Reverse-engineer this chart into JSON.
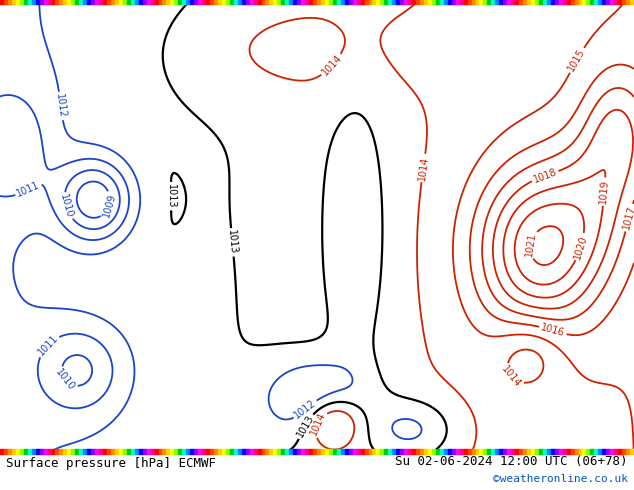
{
  "title_left": "Surface pressure [hPa] ECMWF",
  "title_right": "Su 02-06-2024 12:00 UTC (06+78)",
  "copyright": "©weatheronline.co.uk",
  "land_color": "#b3d98b",
  "sea_color": "#d8eef8",
  "bottom_bg": "#ffffff",
  "font_size_bottom": 9,
  "font_size_copyright": 8,
  "blue_color": "#1a44cc",
  "red_color": "#cc2200",
  "black_color": "#000000"
}
